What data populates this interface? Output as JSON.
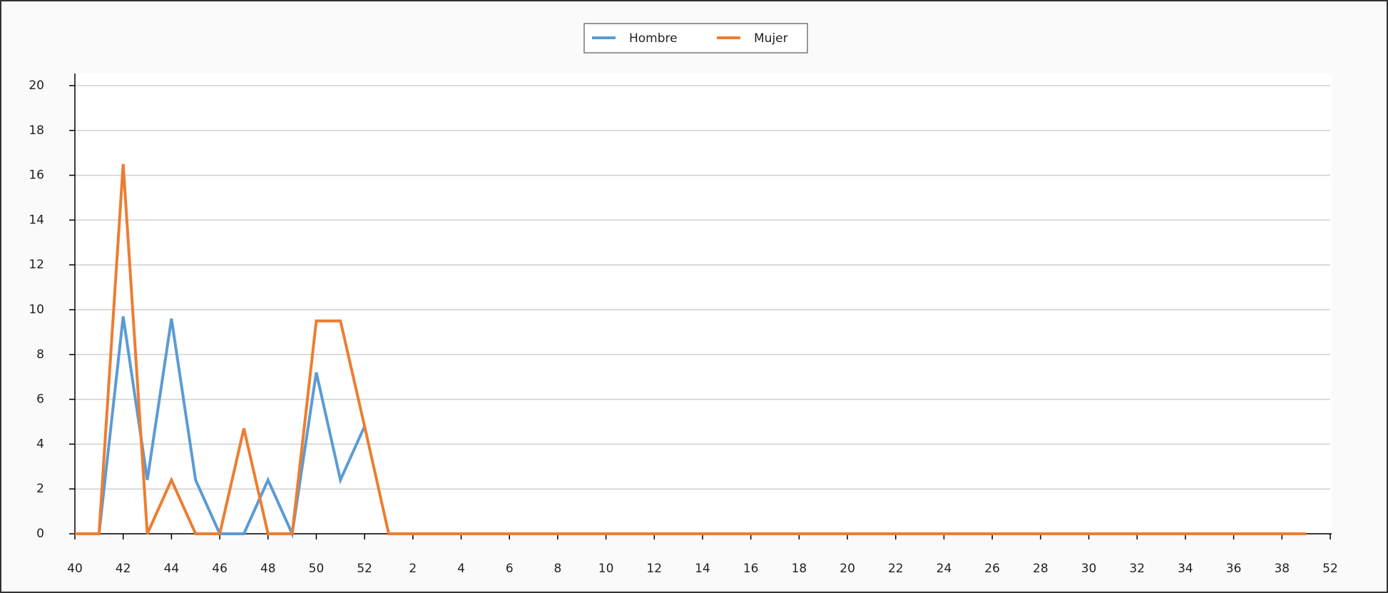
{
  "chart_data": {
    "type": "line",
    "categories": [
      "40",
      null,
      "42",
      null,
      "44",
      null,
      "46",
      null,
      "48",
      null,
      "50",
      null,
      "52",
      null,
      "2",
      null,
      "4",
      null,
      "6",
      null,
      "8",
      null,
      "10",
      null,
      "12",
      null,
      "14",
      null,
      "16",
      null,
      "18",
      null,
      "20",
      null,
      "22",
      null,
      "24",
      null,
      "26",
      null,
      "28",
      null,
      "30",
      null,
      "32",
      null,
      "34",
      null,
      "36",
      null,
      "38",
      null,
      "52"
    ],
    "series": [
      {
        "name": "Hombre",
        "color": "#5b9bd5",
        "values": [
          0,
          0,
          9.7,
          2.4,
          9.6,
          2.4,
          0,
          0,
          2.4,
          0,
          7.2,
          2.4,
          4.8,
          null,
          null,
          null,
          null,
          null,
          null,
          null,
          null,
          null,
          null,
          null,
          null,
          null,
          null,
          null,
          null,
          null,
          null,
          null,
          null,
          null,
          null,
          null,
          null,
          null,
          null,
          null,
          null,
          null,
          null,
          null,
          null,
          null,
          null,
          null,
          null,
          null,
          null,
          null,
          null
        ]
      },
      {
        "name": "Mujer",
        "color": "#ed7d31",
        "values": [
          0,
          0,
          16.5,
          0,
          2.4,
          0,
          0,
          4.7,
          0,
          0,
          9.5,
          9.5,
          4.8,
          0,
          0,
          0,
          0,
          0,
          0,
          0,
          0,
          0,
          0,
          0,
          0,
          0,
          0,
          0,
          0,
          0,
          0,
          0,
          0,
          0,
          0,
          0,
          0,
          0,
          0,
          0,
          0,
          0,
          0,
          0,
          0,
          0,
          0,
          0,
          0,
          0,
          0,
          0,
          null
        ]
      }
    ],
    "ylim": [
      0,
      20
    ],
    "yticks": [
      0,
      2,
      4,
      6,
      8,
      10,
      12,
      14,
      16,
      18,
      20
    ],
    "grid": true,
    "legend": "top"
  }
}
